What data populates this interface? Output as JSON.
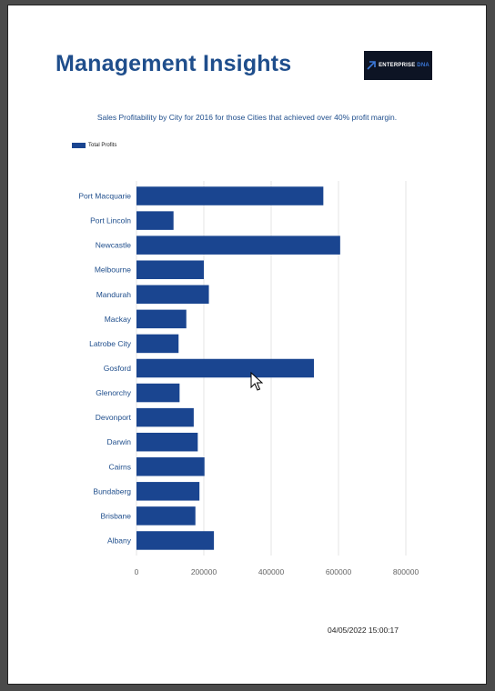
{
  "title": "Management Insights",
  "logo": {
    "text_main": "ENTERPRISE",
    "text_accent": "DNA"
  },
  "subtitle": "Sales Profitability by City for 2016 for those Cities that achieved over 40% profit margin.",
  "legend_label": "Total Profits",
  "timestamp": "04/05/2022 15:00:17",
  "colors": {
    "bar": "#1a4590",
    "title": "#1f4e8c",
    "grid": "#e6e6e6"
  },
  "chart_data": {
    "type": "bar",
    "orientation": "horizontal",
    "categories": [
      "Port Macquarie",
      "Port Lincoln",
      "Newcastle",
      "Melbourne",
      "Mandurah",
      "Mackay",
      "Latrobe City",
      "Gosford",
      "Glenorchy",
      "Devonport",
      "Darwin",
      "Cairns",
      "Bundaberg",
      "Brisbane",
      "Albany"
    ],
    "series": [
      {
        "name": "Total Profits",
        "values": [
          555000,
          110000,
          605000,
          200000,
          215000,
          148000,
          125000,
          527000,
          128000,
          170000,
          182000,
          202000,
          187000,
          175000,
          230000
        ]
      }
    ],
    "xticks": [
      "0",
      "200000",
      "400000",
      "600000",
      "800000"
    ],
    "xlim": [
      0,
      800000
    ],
    "grid": true,
    "legend_position": "top-left"
  }
}
